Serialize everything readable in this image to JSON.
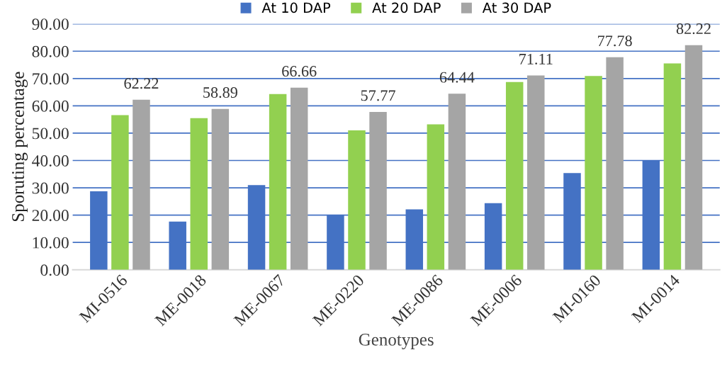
{
  "chart_data": {
    "type": "bar",
    "xlabel": "Genotypes",
    "ylabel": "Sporuting percentage",
    "categories": [
      "MI-0516",
      "ME-0018",
      "ME-0067",
      "ME-0220",
      "ME-0086",
      "ME-0006",
      "MI-0160",
      "MI-0014"
    ],
    "series": [
      {
        "name": "At 10 DAP",
        "color": "#4472c4",
        "values": [
          28.7,
          17.6,
          31.0,
          20.0,
          22.1,
          24.4,
          35.4,
          40.0
        ]
      },
      {
        "name": "At 20 DAP",
        "color": "#92d050",
        "values": [
          56.6,
          55.5,
          64.3,
          51.0,
          53.2,
          68.7,
          70.9,
          75.5
        ]
      },
      {
        "name": "At 30 DAP",
        "color": "#a5a5a5",
        "values": [
          62.22,
          58.89,
          66.66,
          57.77,
          64.44,
          71.11,
          77.78,
          82.22
        ],
        "value_labels": [
          "62.22",
          "58.89",
          "66.66",
          "57.77",
          "64.44",
          "71.11",
          "77.78",
          "82.22"
        ]
      }
    ],
    "ylim": [
      0,
      90
    ],
    "yticks": [
      {
        "value": 0,
        "label": "0.00"
      },
      {
        "value": 10,
        "label": "10.00"
      },
      {
        "value": 20,
        "label": "20.00"
      },
      {
        "value": 30,
        "label": "30.00"
      },
      {
        "value": 40,
        "label": "40.00"
      },
      {
        "value": 50,
        "label": "50.00"
      },
      {
        "value": 60,
        "label": "60.00"
      },
      {
        "value": 70,
        "label": "70.00"
      },
      {
        "value": 80,
        "label": "80.00"
      },
      {
        "value": 90,
        "label": "90.00"
      }
    ],
    "grid": "y",
    "legend": "top"
  }
}
